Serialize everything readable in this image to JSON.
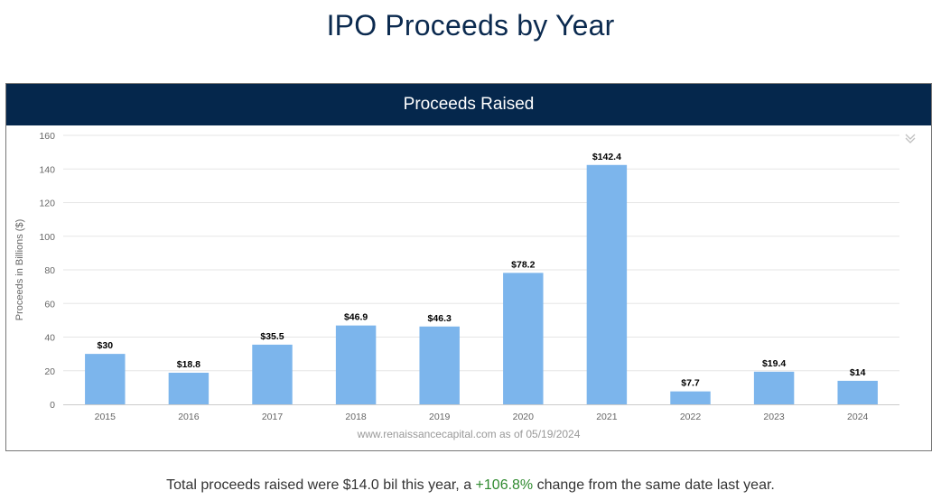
{
  "page": {
    "title": "IPO Proceeds by Year"
  },
  "chart_panel": {
    "header": "Proceeds Raised",
    "menu_icon": "double-chevron-down-icon"
  },
  "chart_data": {
    "type": "bar",
    "title": "Proceeds Raised",
    "categories": [
      "2015",
      "2016",
      "2017",
      "2018",
      "2019",
      "2020",
      "2021",
      "2022",
      "2023",
      "2024"
    ],
    "values": [
      30,
      18.8,
      35.5,
      46.9,
      46.3,
      78.2,
      142.4,
      7.7,
      19.4,
      14
    ],
    "data_labels": [
      "$30",
      "$18.8",
      "$35.5",
      "$46.9",
      "$46.3",
      "$78.2",
      "$142.4",
      "$7.7",
      "$19.4",
      "$14"
    ],
    "ylabel": "Proceeds in Billions ($)",
    "xlabel": "",
    "ylim": [
      0,
      160
    ],
    "yticks": [
      0,
      20,
      40,
      60,
      80,
      100,
      120,
      140,
      160
    ],
    "grid": true,
    "legend": "none",
    "credit": "www.renaissancecapital.com as of 05/19/2024",
    "colors": {
      "bar": "#7cb5ec",
      "grid": "#e6e6e6",
      "axis_text": "#666666",
      "label_text": "#000000"
    }
  },
  "summary": {
    "before": "Total proceeds raised were $14.0 bil this year, a ",
    "change": "+106.8%",
    "after": " change from the same date last year.",
    "change_color": "#2f8a2f"
  }
}
